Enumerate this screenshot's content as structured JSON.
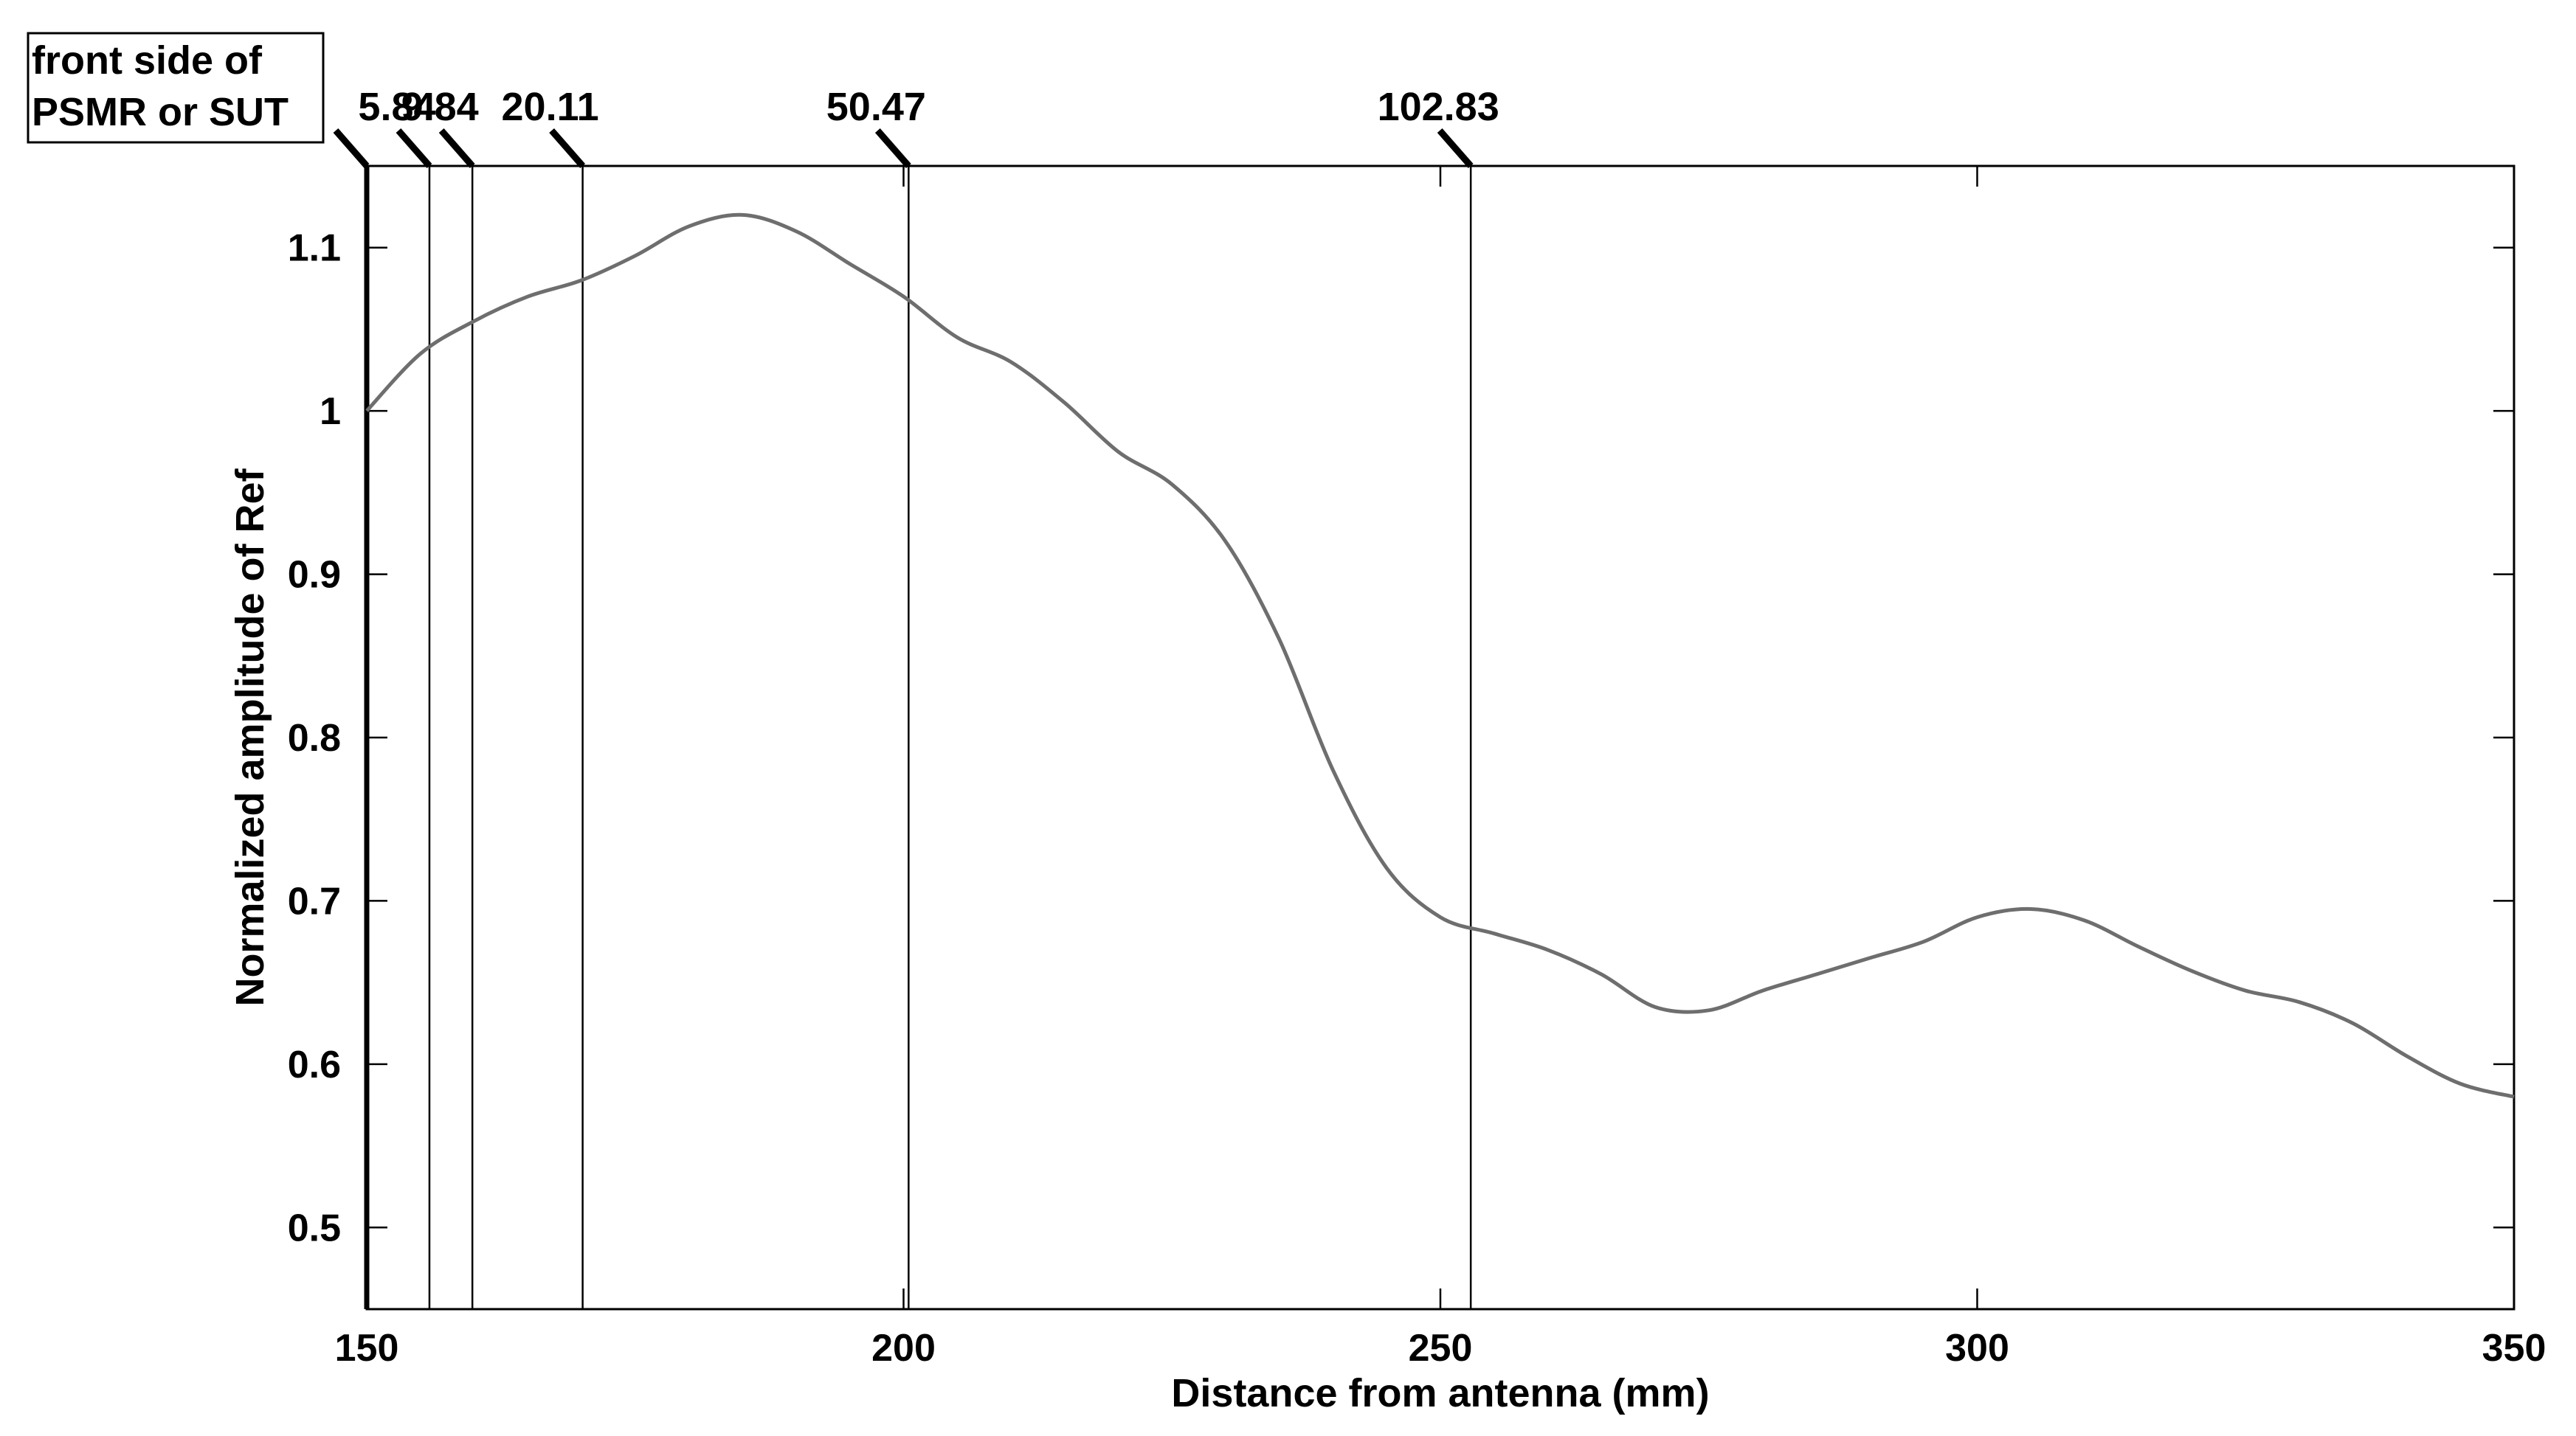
{
  "chart_data": {
    "type": "line",
    "title": "",
    "xlabel": "Distance from antenna (mm)",
    "ylabel": "Normalized amplitude of Ref",
    "xlim": [
      150,
      350
    ],
    "ylim": [
      0.45,
      1.15
    ],
    "xticks": [
      150,
      200,
      250,
      300,
      350
    ],
    "yticks": [
      0.5,
      0.6,
      0.7,
      0.8,
      0.9,
      1,
      1.1
    ],
    "xtick_labels": [
      "150",
      "200",
      "250",
      "300",
      "350"
    ],
    "ytick_labels": [
      "0.5",
      "0.6",
      "0.7",
      "0.8",
      "0.9",
      "1",
      "1.1"
    ],
    "grid": false,
    "series": [
      {
        "color": "#6e6e6e",
        "x": [
          150,
          155,
          160,
          165,
          170,
          175,
          180,
          185,
          190,
          195,
          200,
          205,
          210,
          215,
          220,
          225,
          230,
          235,
          240,
          245,
          250,
          255,
          260,
          265,
          270,
          275,
          280,
          285,
          290,
          295,
          300,
          305,
          310,
          315,
          320,
          325,
          330,
          335,
          340,
          345,
          350
        ],
        "y": [
          1.0,
          1.035,
          1.055,
          1.07,
          1.08,
          1.095,
          1.113,
          1.12,
          1.11,
          1.09,
          1.07,
          1.045,
          1.03,
          1.005,
          0.975,
          0.955,
          0.92,
          0.86,
          0.78,
          0.72,
          0.69,
          0.68,
          0.67,
          0.655,
          0.635,
          0.633,
          0.645,
          0.655,
          0.665,
          0.675,
          0.69,
          0.695,
          0.688,
          0.672,
          0.657,
          0.645,
          0.638,
          0.625,
          0.605,
          0.588,
          0.58
        ]
      }
    ],
    "markers": [
      {
        "x": 150,
        "label": "",
        "bold": true
      },
      {
        "x": 155.84,
        "label": "5.84",
        "bold": false
      },
      {
        "x": 159.84,
        "label": "9.84",
        "bold": false
      },
      {
        "x": 170.11,
        "label": "20.11",
        "bold": false
      },
      {
        "x": 200.47,
        "label": "50.47",
        "bold": false
      },
      {
        "x": 252.83,
        "label": "102.83",
        "bold": false
      }
    ],
    "legend_box": {
      "lines": [
        "front side of",
        "PSMR or SUT"
      ],
      "placement": "top-left"
    }
  }
}
